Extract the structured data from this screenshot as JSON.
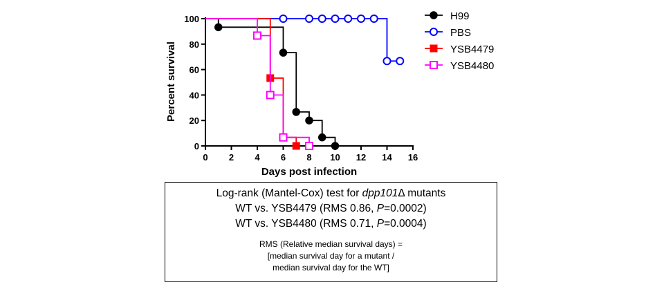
{
  "chart_data": {
    "type": "line",
    "step": true,
    "xlabel": "Days post infection",
    "ylabel": "Percent survival",
    "xlim": [
      0,
      16
    ],
    "ylim": [
      0,
      100
    ],
    "xticks": [
      0,
      2,
      4,
      6,
      8,
      10,
      12,
      14,
      16
    ],
    "yticks": [
      0,
      20,
      40,
      60,
      80,
      100
    ],
    "grid": false,
    "legend": "right",
    "series": [
      {
        "name": "H99",
        "color": "#000000",
        "marker": "filled-circle",
        "steps": [
          [
            0,
            100
          ],
          [
            1,
            93.3
          ],
          [
            6,
            73.3
          ],
          [
            7,
            26.7
          ],
          [
            8,
            20
          ],
          [
            9,
            6.7
          ],
          [
            10,
            0
          ]
        ],
        "markers": [
          [
            1,
            93.3
          ],
          [
            6,
            73.3
          ],
          [
            7,
            26.7
          ],
          [
            8,
            20
          ],
          [
            9,
            6.7
          ],
          [
            10,
            0
          ]
        ]
      },
      {
        "name": "PBS",
        "color": "#0000ff",
        "marker": "open-circle",
        "steps": [
          [
            0,
            100
          ],
          [
            14,
            66.7
          ],
          [
            15,
            66.7
          ]
        ],
        "markers": [
          [
            6,
            100
          ],
          [
            8,
            100
          ],
          [
            9,
            100
          ],
          [
            10,
            100
          ],
          [
            11,
            100
          ],
          [
            12,
            100
          ],
          [
            13,
            100
          ],
          [
            14,
            66.7
          ],
          [
            15,
            66.7
          ]
        ]
      },
      {
        "name": "YSB4479",
        "color": "#ff0000",
        "marker": "filled-square",
        "steps": [
          [
            0,
            100
          ],
          [
            5,
            53.3
          ],
          [
            6,
            6.7
          ],
          [
            7,
            0
          ]
        ],
        "markers": [
          [
            5,
            53.3
          ],
          [
            6,
            6.7
          ],
          [
            7,
            0
          ]
        ]
      },
      {
        "name": "YSB4480",
        "color": "#ff00ff",
        "marker": "open-square",
        "steps": [
          [
            0,
            100
          ],
          [
            4,
            86.7
          ],
          [
            5,
            40
          ],
          [
            6,
            6.7
          ],
          [
            8,
            0
          ]
        ],
        "markers": [
          [
            4,
            86.7
          ],
          [
            5,
            40
          ],
          [
            6,
            6.7
          ],
          [
            8,
            0
          ]
        ]
      }
    ]
  },
  "stats": {
    "line1_prefix": "Log-rank (Mantel-Cox) test for ",
    "line1_gene": "dpp101",
    "line1_suffix": "Δ mutants",
    "line2_prefix": "WT vs. YSB4479 (RMS 0.86, ",
    "line2_p": "P",
    "line2_suffix": "=0.0002)",
    "line3_prefix": "WT vs. YSB4480 (RMS 0.71, ",
    "line3_p": "P",
    "line3_suffix": "=0.0004)",
    "note1": "RMS (Relative median survival days) =",
    "note2": "[median survival day for a mutant  /",
    "note3": "median survival day for the WT]"
  }
}
